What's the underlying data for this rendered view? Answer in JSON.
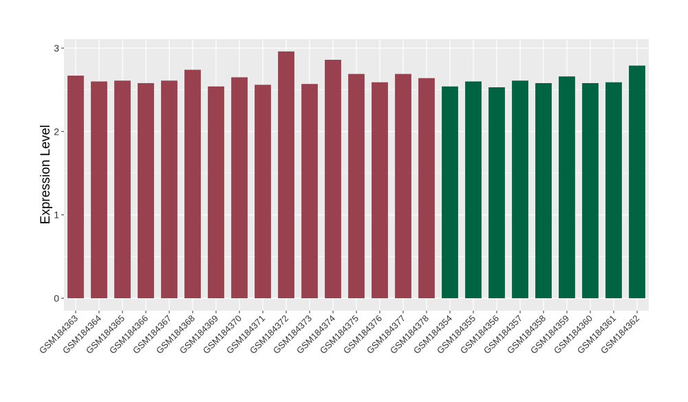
{
  "chart_data": {
    "type": "bar",
    "title": "",
    "xlabel": "",
    "ylabel": "Expression Level",
    "ylim": [
      -0.14,
      3.1
    ],
    "yticks": [
      0,
      1,
      2,
      3
    ],
    "grid": true,
    "categories": [
      "GSM184363",
      "GSM184364",
      "GSM184365",
      "GSM184366",
      "GSM184367",
      "GSM184368",
      "GSM184369",
      "GSM184370",
      "GSM184371",
      "GSM184372",
      "GSM184373",
      "GSM184374",
      "GSM184375",
      "GSM184376",
      "GSM184377",
      "GSM184378",
      "GSM184354",
      "GSM184355",
      "GSM184356",
      "GSM184357",
      "GSM184358",
      "GSM184359",
      "GSM184360",
      "GSM184361",
      "GSM184362"
    ],
    "values": [
      2.67,
      2.6,
      2.61,
      2.58,
      2.61,
      2.74,
      2.54,
      2.65,
      2.56,
      2.96,
      2.57,
      2.86,
      2.69,
      2.59,
      2.69,
      2.64,
      2.54,
      2.6,
      2.53,
      2.61,
      2.58,
      2.66,
      2.58,
      2.59,
      2.79
    ],
    "bar_colors": [
      "#99414f",
      "#99414f",
      "#99414f",
      "#99414f",
      "#99414f",
      "#99414f",
      "#99414f",
      "#99414f",
      "#99414f",
      "#99414f",
      "#99414f",
      "#99414f",
      "#99414f",
      "#99414f",
      "#99414f",
      "#99414f",
      "#006443",
      "#006443",
      "#006443",
      "#006443",
      "#006443",
      "#006443",
      "#006443",
      "#006443",
      "#006443"
    ],
    "panel_background": "#ebebeb"
  }
}
